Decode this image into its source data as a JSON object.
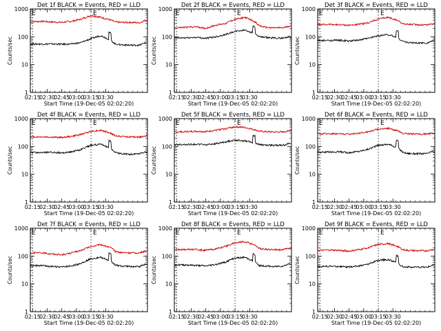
{
  "chart_data": [
    {
      "type": "line",
      "title": "Det 1f BLACK = Events, RED = LLD",
      "ylabel": "Counts/sec",
      "xlabel": "Start Time (19-Dec-05 02:02:20)",
      "ylim": [
        1,
        1000
      ],
      "yscale": "log",
      "xticks": [
        "02:15",
        "02:30",
        "02:45",
        "03:00",
        "03:15",
        "03:30"
      ],
      "yticks": [
        "1",
        "10",
        "100",
        "1000"
      ],
      "marker_labels": [
        "E",
        "E"
      ],
      "grid": false,
      "series": [
        {
          "color": "#cc0000",
          "x_minutes": [
            0,
            10,
            20,
            30,
            40,
            50,
            60,
            70,
            80,
            85,
            90,
            100,
            110,
            115
          ],
          "values": [
            350,
            360,
            340,
            330,
            360,
            430,
            580,
            500,
            400,
            340,
            330,
            330,
            320,
            380
          ]
        },
        {
          "color": "#000000",
          "x_minutes": [
            0,
            10,
            20,
            30,
            40,
            50,
            60,
            70,
            80,
            85,
            90,
            100,
            110,
            115
          ],
          "values": [
            55,
            55,
            55,
            54,
            55,
            62,
            85,
            110,
            75,
            55,
            52,
            50,
            50,
            60
          ]
        }
      ]
    },
    {
      "type": "line",
      "title": "Det 2f BLACK = Events, RED = LLD",
      "ylabel": "Counts/sec",
      "xlabel": "Start Time (19-Dec-05 02:02:20)",
      "ylim": [
        1,
        1000
      ],
      "yscale": "log",
      "xticks": [
        "02:15",
        "02:30",
        "02:45",
        "03:00",
        "03:15",
        "03:30"
      ],
      "yticks": [
        "1",
        "10",
        "100",
        "1000"
      ],
      "marker_labels": [
        "E",
        "E"
      ],
      "grid": false,
      "series": [
        {
          "color": "#cc0000",
          "x_minutes": [
            0,
            10,
            20,
            30,
            40,
            50,
            60,
            70,
            80,
            85,
            90,
            100,
            110,
            115
          ],
          "values": [
            210,
            220,
            230,
            200,
            260,
            300,
            420,
            500,
            350,
            250,
            220,
            210,
            210,
            240
          ]
        },
        {
          "color": "#000000",
          "x_minutes": [
            0,
            10,
            20,
            30,
            40,
            50,
            60,
            70,
            80,
            85,
            90,
            100,
            110,
            115
          ],
          "values": [
            90,
            92,
            95,
            88,
            100,
            120,
            155,
            175,
            130,
            100,
            95,
            90,
            90,
            100
          ]
        }
      ]
    },
    {
      "type": "line",
      "title": "Det 3f BLACK = Events, RED = LLD",
      "ylabel": "Counts/sec",
      "xlabel": "Start Time (19-Dec-05 02:02:20)",
      "ylim": [
        1,
        1000
      ],
      "yscale": "log",
      "xticks": [
        "02:15",
        "02:30",
        "02:45",
        "03:00",
        "03:15",
        "03:30"
      ],
      "yticks": [
        "1",
        "10",
        "100",
        "1000"
      ],
      "marker_labels": [
        "E",
        "E"
      ],
      "grid": false,
      "series": [
        {
          "color": "#cc0000",
          "x_minutes": [
            0,
            10,
            20,
            30,
            40,
            50,
            60,
            70,
            80,
            85,
            90,
            100,
            110,
            115
          ],
          "values": [
            270,
            280,
            270,
            260,
            280,
            320,
            430,
            500,
            380,
            300,
            280,
            270,
            270,
            290
          ]
        },
        {
          "color": "#000000",
          "x_minutes": [
            0,
            10,
            20,
            30,
            40,
            50,
            60,
            70,
            80,
            85,
            90,
            100,
            110,
            115
          ],
          "values": [
            72,
            74,
            75,
            70,
            76,
            88,
            110,
            120,
            90,
            70,
            62,
            60,
            60,
            70
          ]
        }
      ]
    },
    {
      "type": "line",
      "title": "Det 4f BLACK = Events, RED = LLD",
      "ylabel": "Counts/sec",
      "xlabel": "Start Time (19-Dec-05 02:02:20)",
      "ylim": [
        1,
        1000
      ],
      "yscale": "log",
      "xticks": [
        "02:15",
        "02:30",
        "02:45",
        "03:00",
        "03:15",
        "03:30"
      ],
      "yticks": [
        "1",
        "10",
        "100",
        "1000"
      ],
      "marker_labels": [
        "E",
        "E"
      ],
      "grid": false,
      "series": [
        {
          "color": "#cc0000",
          "x_minutes": [
            0,
            10,
            20,
            30,
            40,
            50,
            60,
            70,
            80,
            85,
            90,
            100,
            110,
            115
          ],
          "values": [
            220,
            220,
            215,
            210,
            230,
            270,
            350,
            380,
            300,
            240,
            230,
            220,
            215,
            240
          ]
        },
        {
          "color": "#000000",
          "x_minutes": [
            0,
            10,
            20,
            30,
            40,
            50,
            60,
            70,
            80,
            85,
            90,
            100,
            110,
            115
          ],
          "values": [
            60,
            60,
            62,
            58,
            64,
            78,
            110,
            120,
            85,
            60,
            55,
            52,
            55,
            62
          ]
        }
      ]
    },
    {
      "type": "line",
      "title": "Det 5f BLACK = Events, RED = LLD",
      "ylabel": "Counts/sec",
      "xlabel": "Start Time (19-Dec-05 02:02:20)",
      "ylim": [
        1,
        1000
      ],
      "yscale": "log",
      "xticks": [
        "02:15",
        "02:30",
        "02:45",
        "03:00",
        "03:15",
        "03:30"
      ],
      "yticks": [
        "1",
        "10",
        "100",
        "1000"
      ],
      "marker_labels": [
        "E",
        "E"
      ],
      "grid": false,
      "series": [
        {
          "color": "#cc0000",
          "x_minutes": [
            0,
            10,
            20,
            30,
            40,
            50,
            60,
            70,
            80,
            85,
            90,
            100,
            110,
            115
          ],
          "values": [
            330,
            340,
            350,
            340,
            380,
            430,
            510,
            480,
            400,
            350,
            340,
            330,
            330,
            370
          ]
        },
        {
          "color": "#000000",
          "x_minutes": [
            0,
            10,
            20,
            30,
            40,
            50,
            60,
            70,
            80,
            85,
            90,
            100,
            110,
            115
          ],
          "values": [
            115,
            118,
            120,
            115,
            125,
            145,
            170,
            160,
            135,
            118,
            112,
            110,
            112,
            125
          ]
        }
      ]
    },
    {
      "type": "line",
      "title": "Det 6f BLACK = Events, RED = LLD",
      "ylabel": "Counts/sec",
      "xlabel": "Start Time (19-Dec-05 02:02:20)",
      "ylim": [
        1,
        1000
      ],
      "yscale": "log",
      "xticks": [
        "02:15",
        "02:30",
        "02:45",
        "03:00",
        "03:15",
        "03:30"
      ],
      "yticks": [
        "1",
        "10",
        "100",
        "1000"
      ],
      "marker_labels": [
        "E",
        "E"
      ],
      "grid": false,
      "series": [
        {
          "color": "#cc0000",
          "x_minutes": [
            0,
            10,
            20,
            30,
            40,
            50,
            60,
            70,
            80,
            85,
            90,
            100,
            110,
            115
          ],
          "values": [
            280,
            290,
            285,
            275,
            300,
            340,
            420,
            450,
            360,
            300,
            285,
            280,
            280,
            300
          ]
        },
        {
          "color": "#000000",
          "x_minutes": [
            0,
            10,
            20,
            30,
            40,
            50,
            60,
            70,
            80,
            85,
            90,
            100,
            110,
            115
          ],
          "values": [
            62,
            63,
            64,
            60,
            66,
            80,
            110,
            120,
            88,
            62,
            56,
            55,
            55,
            65
          ]
        }
      ]
    },
    {
      "type": "line",
      "title": "Det 7f BLACK = Events, RED = LLD",
      "ylabel": "Counts/sec",
      "xlabel": "Start Time (19-Dec-05 02:02:20)",
      "ylim": [
        1,
        1000
      ],
      "yscale": "log",
      "xticks": [
        "02:15",
        "02:30",
        "02:45",
        "03:00",
        "03:15",
        "03:30"
      ],
      "yticks": [
        "1",
        "10",
        "100",
        "1000"
      ],
      "marker_labels": [
        "E",
        "E"
      ],
      "grid": false,
      "series": [
        {
          "color": "#cc0000",
          "x_minutes": [
            0,
            10,
            20,
            30,
            40,
            50,
            60,
            70,
            80,
            85,
            90,
            100,
            110,
            115
          ],
          "values": [
            130,
            130,
            120,
            110,
            130,
            160,
            220,
            260,
            200,
            150,
            135,
            130,
            130,
            150
          ]
        },
        {
          "color": "#000000",
          "x_minutes": [
            0,
            10,
            20,
            30,
            40,
            50,
            60,
            70,
            80,
            85,
            90,
            100,
            110,
            115
          ],
          "values": [
            45,
            45,
            42,
            40,
            44,
            55,
            80,
            90,
            65,
            48,
            44,
            42,
            42,
            50
          ]
        }
      ]
    },
    {
      "type": "line",
      "title": "Det 8f BLACK = Events, RED = LLD",
      "ylabel": "Counts/sec",
      "xlabel": "Start Time (19-Dec-05 02:02:20)",
      "ylim": [
        1,
        1000
      ],
      "yscale": "log",
      "xticks": [
        "02:15",
        "02:30",
        "02:45",
        "03:00",
        "03:15",
        "03:30"
      ],
      "yticks": [
        "1",
        "10",
        "100",
        "1000"
      ],
      "marker_labels": [
        "E",
        "E"
      ],
      "grid": false,
      "series": [
        {
          "color": "#cc0000",
          "x_minutes": [
            0,
            10,
            20,
            30,
            40,
            50,
            60,
            70,
            80,
            85,
            90,
            100,
            110,
            115
          ],
          "values": [
            170,
            175,
            170,
            160,
            180,
            220,
            300,
            330,
            250,
            190,
            175,
            170,
            170,
            190
          ]
        },
        {
          "color": "#000000",
          "x_minutes": [
            0,
            10,
            20,
            30,
            40,
            50,
            60,
            70,
            80,
            85,
            90,
            100,
            110,
            115
          ],
          "values": [
            48,
            48,
            46,
            44,
            50,
            60,
            85,
            90,
            62,
            46,
            44,
            42,
            44,
            52
          ]
        }
      ]
    },
    {
      "type": "line",
      "title": "Det 9f BLACK = Events, RED = LLD",
      "ylabel": "Counts/sec",
      "xlabel": "Start Time (19-Dec-05 02:02:20)",
      "ylim": [
        1,
        1000
      ],
      "yscale": "log",
      "xticks": [
        "02:15",
        "02:30",
        "02:45",
        "03:00",
        "03:15",
        "03:30"
      ],
      "yticks": [
        "1",
        "10",
        "100",
        "1000"
      ],
      "marker_labels": [
        "E",
        "E"
      ],
      "grid": false,
      "series": [
        {
          "color": "#cc0000",
          "x_minutes": [
            0,
            10,
            20,
            30,
            40,
            50,
            60,
            70,
            80,
            85,
            90,
            100,
            110,
            115
          ],
          "values": [
            160,
            165,
            160,
            150,
            170,
            200,
            260,
            280,
            220,
            170,
            160,
            155,
            155,
            170
          ]
        },
        {
          "color": "#000000",
          "x_minutes": [
            0,
            10,
            20,
            30,
            40,
            50,
            60,
            70,
            80,
            85,
            90,
            100,
            110,
            115
          ],
          "values": [
            42,
            43,
            42,
            40,
            44,
            52,
            70,
            75,
            55,
            42,
            40,
            40,
            40,
            46
          ]
        }
      ]
    }
  ]
}
